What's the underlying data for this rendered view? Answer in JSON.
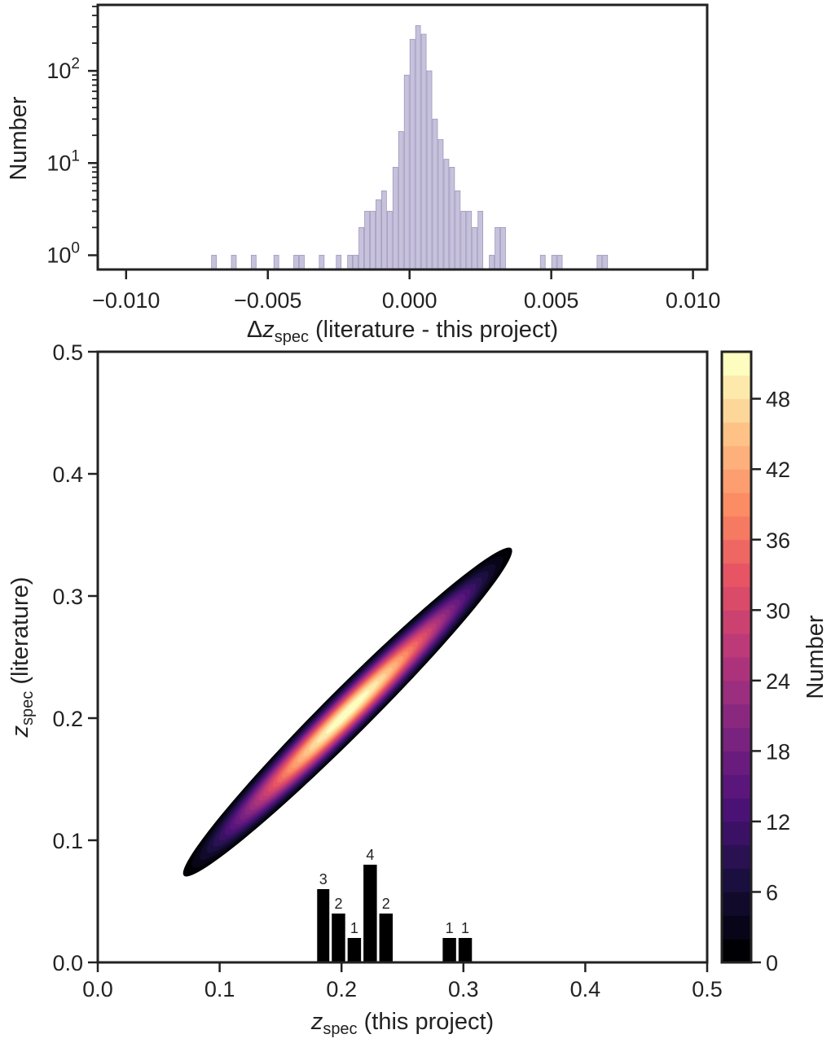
{
  "chart_data": [
    {
      "type": "bar",
      "scale_y": "log",
      "xlabel": {
        "prefix": "Δ",
        "var": "z",
        "sub": "spec",
        "suffix": " (literature - this project)"
      },
      "ylabel": "Number",
      "xlim": [
        -0.011,
        0.0105
      ],
      "ylim": [
        0.7,
        520
      ],
      "bar_color": "#c7c2dc",
      "bar_edge": "#9f97bd",
      "bin_width": 0.0002,
      "x_ticks": [
        -0.01,
        -0.005,
        0.0,
        0.005,
        0.01
      ],
      "x_tick_labels": [
        "−0.010",
        "−0.005",
        "0.000",
        "0.005",
        "0.010"
      ],
      "y_ticks": [
        {
          "value": 1,
          "base": "10",
          "exp": "0"
        },
        {
          "value": 10,
          "base": "10",
          "exp": "1"
        },
        {
          "value": 100,
          "base": "10",
          "exp": "2"
        }
      ],
      "bins": [
        {
          "x": -0.0069,
          "count": 1
        },
        {
          "x": -0.0062,
          "count": 1
        },
        {
          "x": -0.0055,
          "count": 1
        },
        {
          "x": -0.0047,
          "count": 1
        },
        {
          "x": -0.004,
          "count": 1
        },
        {
          "x": -0.0038,
          "count": 1
        },
        {
          "x": -0.0031,
          "count": 1
        },
        {
          "x": -0.0025,
          "count": 1
        },
        {
          "x": -0.0021,
          "count": 1
        },
        {
          "x": -0.0019,
          "count": 1
        },
        {
          "x": -0.0017,
          "count": 2
        },
        {
          "x": -0.0015,
          "count": 3
        },
        {
          "x": -0.0013,
          "count": 3
        },
        {
          "x": -0.0011,
          "count": 4
        },
        {
          "x": -0.0009,
          "count": 5
        },
        {
          "x": -0.0007,
          "count": 3
        },
        {
          "x": -0.0005,
          "count": 9
        },
        {
          "x": -0.0003,
          "count": 22
        },
        {
          "x": -0.0001,
          "count": 90
        },
        {
          "x": 0.0001,
          "count": 220
        },
        {
          "x": 0.0003,
          "count": 310
        },
        {
          "x": 0.0005,
          "count": 250
        },
        {
          "x": 0.0007,
          "count": 100
        },
        {
          "x": 0.0009,
          "count": 30
        },
        {
          "x": 0.0011,
          "count": 18
        },
        {
          "x": 0.0013,
          "count": 11
        },
        {
          "x": 0.0015,
          "count": 9
        },
        {
          "x": 0.0017,
          "count": 5
        },
        {
          "x": 0.0019,
          "count": 3
        },
        {
          "x": 0.0021,
          "count": 3
        },
        {
          "x": 0.0023,
          "count": 2
        },
        {
          "x": 0.0025,
          "count": 3
        },
        {
          "x": 0.0029,
          "count": 1
        },
        {
          "x": 0.0031,
          "count": 2
        },
        {
          "x": 0.0033,
          "count": 2
        },
        {
          "x": 0.0047,
          "count": 1
        },
        {
          "x": 0.0051,
          "count": 1
        },
        {
          "x": 0.0053,
          "count": 1
        },
        {
          "x": 0.0067,
          "count": 1
        },
        {
          "x": 0.0069,
          "count": 1
        }
      ]
    },
    {
      "type": "heatmap",
      "subtype": "filled-contour",
      "xlabel": {
        "var": "z",
        "sub": "spec",
        "suffix": " (this project)"
      },
      "ylabel": {
        "var": "z",
        "sub": "spec",
        "suffix": " (literature)"
      },
      "xlim": [
        0.0,
        0.5
      ],
      "ylim": [
        0.0,
        0.5
      ],
      "x_ticks": [
        0.0,
        0.1,
        0.2,
        0.3,
        0.4,
        0.5
      ],
      "x_tick_labels": [
        "0.0",
        "0.1",
        "0.2",
        "0.3",
        "0.4",
        "0.5"
      ],
      "y_ticks": [
        0.0,
        0.1,
        0.2,
        0.3,
        0.4,
        0.5
      ],
      "y_tick_labels": [
        "0.0",
        "0.1",
        "0.2",
        "0.3",
        "0.4",
        "0.5"
      ],
      "colormap": "magma",
      "contour_levels": 26,
      "density": {
        "center": [
          0.205,
          0.205
        ],
        "peak": 52,
        "sigma_along_diagonal": 0.095,
        "sigma_across_diagonal": 0.0095,
        "cutoff": 0.15
      },
      "colorbar": {
        "label": "Number",
        "min": 0,
        "max": 52,
        "ticks": [
          0,
          6,
          12,
          18,
          24,
          30,
          36,
          42,
          48
        ],
        "tick_labels": [
          "0",
          "6",
          "12",
          "18",
          "24",
          "30",
          "36",
          "42",
          "48"
        ]
      },
      "inset_histogram": {
        "bar_color": "#000000",
        "height_per_count": 0.02,
        "bars": [
          {
            "x0": 0.18,
            "x1": 0.19,
            "count": 3,
            "label": "3"
          },
          {
            "x0": 0.192,
            "x1": 0.203,
            "count": 2,
            "label": "2"
          },
          {
            "x0": 0.205,
            "x1": 0.216,
            "count": 1,
            "label": "1"
          },
          {
            "x0": 0.218,
            "x1": 0.229,
            "count": 4,
            "label": "4"
          },
          {
            "x0": 0.231,
            "x1": 0.242,
            "count": 2,
            "label": "2"
          },
          {
            "x0": 0.283,
            "x1": 0.294,
            "count": 1,
            "label": "1"
          },
          {
            "x0": 0.296,
            "x1": 0.307,
            "count": 1,
            "label": "1"
          }
        ]
      }
    }
  ]
}
